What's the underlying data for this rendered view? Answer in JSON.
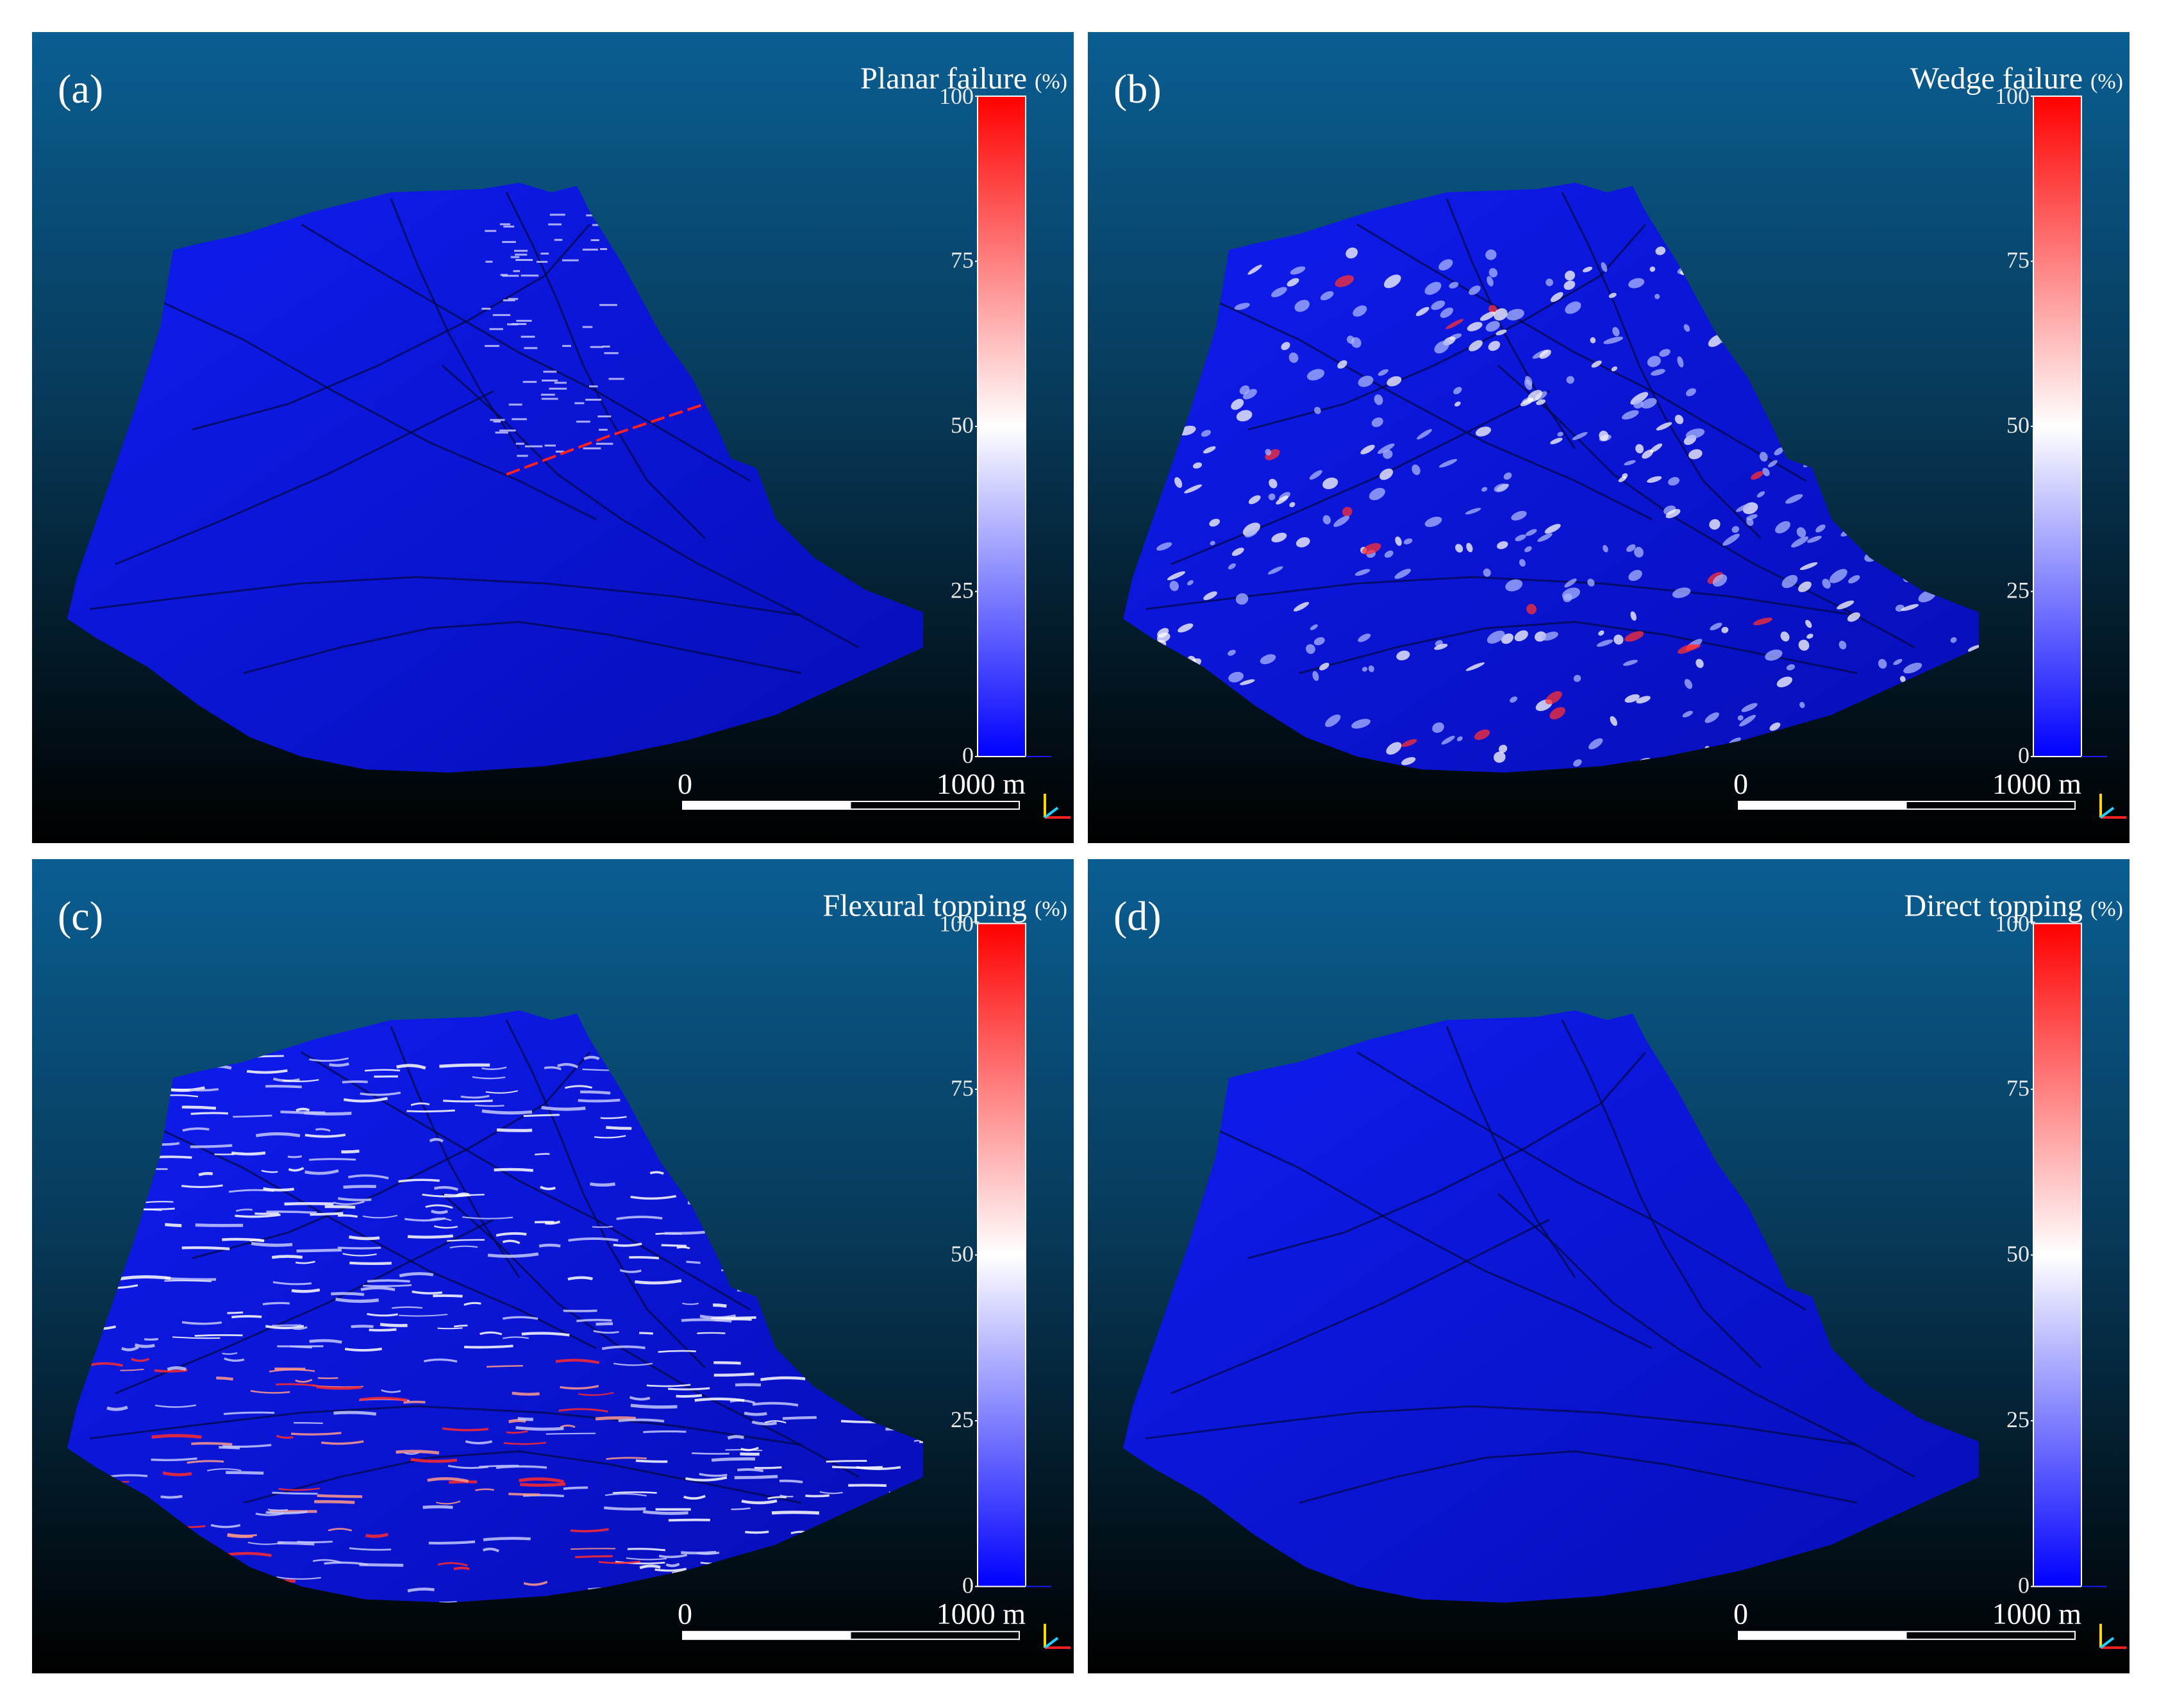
{
  "panels": [
    {
      "id": "a",
      "label": "(a)",
      "title": "Planar failure",
      "unit": "(%)",
      "pattern": "planar"
    },
    {
      "id": "b",
      "label": "(b)",
      "title": "Wedge failure",
      "unit": "(%)",
      "pattern": "wedge"
    },
    {
      "id": "c",
      "label": "(c)",
      "title": "Flexural topping",
      "unit": "(%)",
      "pattern": "flexural"
    },
    {
      "id": "d",
      "label": "(d)",
      "title": "Direct topping",
      "unit": "(%)",
      "pattern": "direct"
    }
  ],
  "colorbar": {
    "ticks": [
      "100",
      "75",
      "50",
      "25",
      "0"
    ],
    "colors": {
      "high": "#ff0000",
      "mid": "#ffffff",
      "low": "#0000ff"
    }
  },
  "scalebar": {
    "start_label": "0",
    "end_label": "1000 m"
  },
  "colors": {
    "background_top": "#0a5e92",
    "background_bottom": "#000000",
    "terrain": "#0a14e6",
    "ridge": "#000840"
  }
}
